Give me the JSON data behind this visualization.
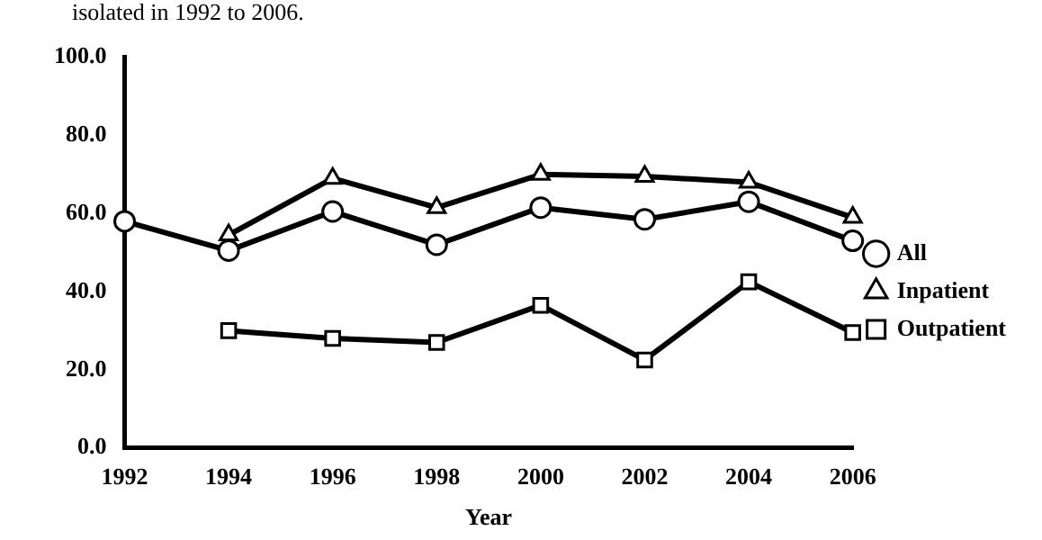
{
  "chart_data": {
    "type": "line",
    "title": "isolated in 1992 to 2006.",
    "xlabel": "Year",
    "categories": [
      "1992",
      "1994",
      "1996",
      "1998",
      "2000",
      "2002",
      "2004",
      "2006"
    ],
    "series": [
      {
        "name": "All",
        "color": "#000000",
        "marker": "circle",
        "values": [
          58,
          50.5,
          60.5,
          52,
          61.5,
          58.5,
          63,
          53
        ]
      },
      {
        "name": "Inpatient",
        "color": "#000000",
        "marker": "triangle",
        "values": [
          null,
          54.5,
          69,
          61.5,
          70,
          69.5,
          68,
          59
        ]
      },
      {
        "name": "Outpatient",
        "color": "#000000",
        "marker": "square",
        "values": [
          null,
          30,
          28,
          27,
          36.5,
          22.5,
          42.5,
          29.5
        ]
      }
    ],
    "ylim": [
      0,
      100
    ],
    "yticks": [
      {
        "value": 0,
        "label": "0.0"
      },
      {
        "value": 20,
        "label": "20.0"
      },
      {
        "value": 40,
        "label": "40.0"
      },
      {
        "value": 60,
        "label": "60.0"
      },
      {
        "value": 80,
        "label": "80.0"
      },
      {
        "value": 100,
        "label": "100.0"
      }
    ],
    "grid": false,
    "legend": "right",
    "line_style": "solid"
  }
}
